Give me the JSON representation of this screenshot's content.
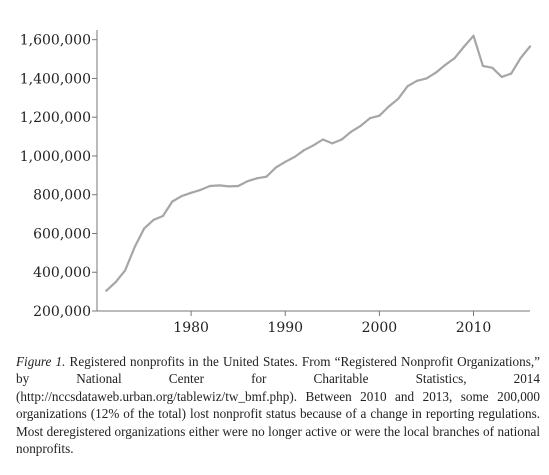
{
  "chart_data": {
    "type": "line",
    "title": "",
    "xlabel": "",
    "ylabel": "",
    "xlim": [
      1970,
      2016
    ],
    "ylim": [
      200000,
      1650000
    ],
    "x_ticks": [
      1980,
      1990,
      2000,
      2010
    ],
    "x_tick_labels": [
      "1980",
      "1990",
      "2000",
      "2010"
    ],
    "y_ticks": [
      200000,
      400000,
      600000,
      800000,
      1000000,
      1200000,
      1400000,
      1600000
    ],
    "y_tick_labels": [
      "200,000",
      "400,000",
      "600,000",
      "800,000",
      "1,000,000",
      "1,200,000",
      "1,400,000",
      "1,600,000"
    ],
    "grid": false,
    "legend": "none",
    "series": [
      {
        "color": "#a6a6a6",
        "x": [
          1971,
          1972,
          1973,
          1974,
          1975,
          1976,
          1977,
          1978,
          1979,
          1980,
          1981,
          1982,
          1983,
          1984,
          1985,
          1986,
          1987,
          1988,
          1989,
          1990,
          1991,
          1992,
          1993,
          1994,
          1995,
          1996,
          1997,
          1998,
          1999,
          2000,
          2001,
          2002,
          2003,
          2004,
          2005,
          2006,
          2007,
          2008,
          2009,
          2010,
          2011,
          2012,
          2013,
          2014,
          2015,
          2016
        ],
        "y": [
          305000,
          350000,
          410000,
          530000,
          625000,
          670000,
          690000,
          765000,
          793000,
          810000,
          825000,
          845000,
          848000,
          843000,
          845000,
          870000,
          885000,
          893000,
          940000,
          970000,
          995000,
          1030000,
          1055000,
          1085000,
          1065000,
          1085000,
          1125000,
          1155000,
          1195000,
          1208000,
          1255000,
          1295000,
          1360000,
          1388000,
          1400000,
          1430000,
          1470000,
          1505000,
          1565000,
          1620000,
          1465000,
          1455000,
          1408000,
          1425000,
          1505000,
          1565000
        ]
      }
    ]
  },
  "caption": {
    "figure_label": "Figure 1.",
    "text": " Registered nonprofits in the United States. From “Registered Nonprofit Organizations,” by National Center for Charitable Statistics, 2014 (http://nccsdataweb.urban.org/tablewiz/tw_bmf.php). Between 2010 and 2013, some 200,000 organizations (12% of the total) lost nonprofit status because of a change in reporting regulations. Most deregistered organizations either were no longer active or were the local branches of national nonprofits."
  }
}
